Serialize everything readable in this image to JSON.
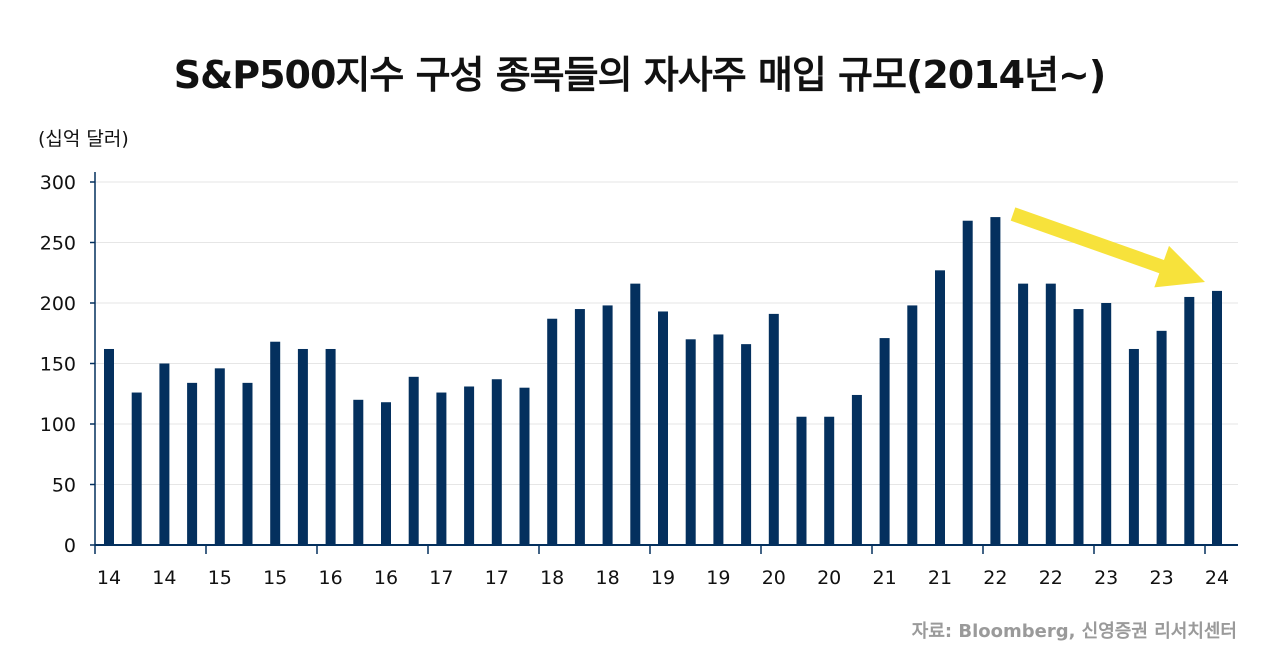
{
  "title": "S&P500지수 구성 종목들의 자사주 매입 규모(2014년~)",
  "source": "자료: Bloomberg, 신영증권 리서치센터",
  "chart_data": {
    "type": "bar",
    "ylabel": "(십억 달러)",
    "ylim": [
      0,
      300
    ],
    "yticks": [
      0,
      50,
      100,
      150,
      200,
      250,
      300
    ],
    "grid": true,
    "bar_color": "#04305e",
    "annotation_arrow_color": "#f7e23b",
    "categories": [
      "14",
      "14",
      "14",
      "14",
      "15",
      "15",
      "15",
      "15",
      "16",
      "16",
      "16",
      "16",
      "17",
      "17",
      "17",
      "17",
      "18",
      "18",
      "18",
      "18",
      "19",
      "19",
      "19",
      "19",
      "20",
      "20",
      "20",
      "20",
      "21",
      "21",
      "21",
      "21",
      "22",
      "22",
      "22",
      "22",
      "23",
      "23",
      "23",
      "23",
      "24"
    ],
    "x_tick_labels": [
      "14",
      "14",
      "15",
      "15",
      "16",
      "16",
      "17",
      "17",
      "18",
      "18",
      "19",
      "19",
      "20",
      "20",
      "21",
      "21",
      "22",
      "22",
      "23",
      "23",
      "24"
    ],
    "values": [
      162,
      126,
      150,
      134,
      146,
      134,
      168,
      162,
      162,
      120,
      118,
      139,
      126,
      131,
      137,
      130,
      187,
      195,
      198,
      216,
      193,
      170,
      174,
      166,
      191,
      106,
      106,
      124,
      171,
      198,
      227,
      268,
      271,
      216,
      216,
      195,
      200,
      162,
      177,
      205,
      210
    ]
  }
}
